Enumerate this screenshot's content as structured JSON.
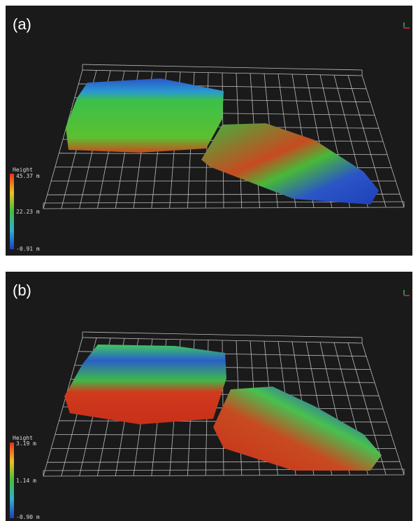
{
  "panels": [
    {
      "label": "(a)",
      "legend": {
        "title": "Height",
        "labels": [
          "45.37 m",
          "22.23 m",
          "-0.91 m"
        ]
      }
    },
    {
      "label": "(b)",
      "legend": {
        "title": "Height",
        "labels": [
          "3.19 m",
          "1.14 m",
          "-0.90 m"
        ]
      }
    }
  ]
}
